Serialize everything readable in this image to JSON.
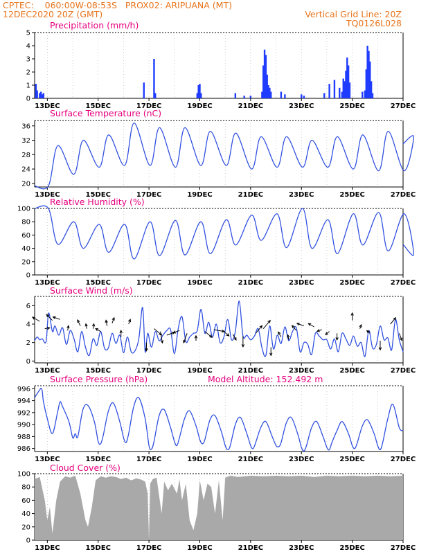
{
  "header": {
    "left_line1": "CPTEC:    060:00W-08:53S   PROX02: ARIPUANA (MT)",
    "left_line2": "12DEC2020 20Z (GMT)",
    "right_line1": "Vertical Grid Line: 20Z",
    "right_line2": "TQ0126L028"
  },
  "colors": {
    "header": "#e8741c",
    "panel_title": "#e6007e",
    "series_line": "#3050e0",
    "precip_bar": "#1f3cff",
    "cloud_fill": "#a9a9a9",
    "wind_arrow": "#000000"
  },
  "chart_data": [
    {
      "type": "bar",
      "title": "Precipitation (mm/h)",
      "ylim": [
        0,
        5
      ],
      "yticks": [
        0,
        1,
        2,
        3,
        4,
        5
      ],
      "x_start": 12.5,
      "x_end": 27,
      "xticks": [
        "13DEC",
        "15DEC",
        "17DEC",
        "19DEC",
        "21DEC",
        "23DEC",
        "25DEC",
        "27DEC"
      ],
      "x": [
        12.55,
        12.6,
        12.7,
        12.75,
        12.8,
        12.85,
        16.8,
        17.2,
        17.25,
        18.9,
        18.95,
        19.0,
        19.05,
        20.4,
        20.75,
        21.0,
        21.45,
        21.5,
        21.55,
        21.6,
        21.65,
        21.7,
        21.75,
        21.8,
        22.2,
        22.35,
        23.0,
        23.1,
        23.9,
        24.1,
        24.3,
        24.5,
        24.6,
        24.65,
        24.7,
        24.75,
        24.8,
        24.85,
        24.9,
        25.4,
        25.5,
        25.55,
        25.6,
        25.65,
        25.7,
        25.75,
        25.8
      ],
      "values": [
        1.1,
        0.6,
        0.4,
        0.5,
        0.3,
        0.4,
        1.2,
        3.0,
        0.4,
        0.4,
        1.0,
        1.1,
        0.4,
        0.4,
        0.2,
        0.2,
        0.5,
        2.5,
        3.7,
        3.3,
        1.8,
        1.0,
        0.8,
        0.5,
        0.5,
        0.3,
        0.3,
        0.2,
        0.4,
        1.1,
        1.4,
        0.8,
        0.5,
        1.5,
        1.3,
        2.1,
        3.1,
        2.5,
        1.2,
        0.5,
        0.6,
        2.2,
        4.0,
        3.6,
        2.8,
        1.3,
        0.4
      ]
    },
    {
      "type": "line",
      "title": "Surface Temperature (nC)",
      "ylim": [
        19,
        37.5
      ],
      "yticks": [
        20,
        24,
        28,
        32,
        36
      ],
      "x_start": 12.5,
      "x_end": 27,
      "xticks": [
        "13DEC",
        "15DEC",
        "17DEC",
        "19DEC",
        "21DEC",
        "23DEC",
        "25DEC",
        "27DEC"
      ],
      "period_start": 12.5,
      "minima_hours_after_start": 13,
      "maxima_hours_after_start": 22,
      "daily_min": [
        19.3,
        22.5,
        24.5,
        25.0,
        25.0,
        24.5,
        25.0,
        25.0,
        24.0,
        24.5,
        24.5,
        24.5,
        24.0,
        23.5,
        23.5
      ],
      "daily_max": [
        30.5,
        32.0,
        33.5,
        36.8,
        35.5,
        35.5,
        34.5,
        34.0,
        33.0,
        33.0,
        32.0,
        33.0,
        33.5,
        34.5,
        33.0
      ],
      "end_value": 31.0
    },
    {
      "type": "line",
      "title": "Relative Humidity (%)",
      "ylim": [
        0,
        100
      ],
      "yticks": [
        0,
        20,
        40,
        60,
        80,
        100
      ],
      "x_start": 12.5,
      "x_end": 27,
      "xticks": [
        "13DEC",
        "15DEC",
        "17DEC",
        "19DEC",
        "21DEC",
        "23DEC",
        "25DEC",
        "27DEC"
      ],
      "period_start": 12.5,
      "minima_hours_after_start": 22,
      "maxima_hours_after_start": 13,
      "daily_min": [
        46,
        40,
        34,
        24,
        29,
        30,
        32,
        45,
        52,
        41,
        40,
        32,
        45,
        36,
        31
      ],
      "daily_max": [
        100,
        80,
        76,
        76,
        80,
        82,
        80,
        83,
        90,
        92,
        100,
        83,
        92,
        94,
        92
      ],
      "start_value": 100,
      "end_value": 46
    },
    {
      "type": "line",
      "title": "Surface Wind (m/s)",
      "ylim": [
        -0.2,
        7
      ],
      "yticks": [
        0,
        2,
        4,
        6
      ],
      "x_start": 12.5,
      "x_end": 27,
      "xticks": [
        "13DEC",
        "15DEC",
        "17DEC",
        "19DEC",
        "21DEC",
        "23DEC",
        "25DEC",
        "27DEC"
      ],
      "x": [
        12.5,
        12.6,
        12.7,
        12.8,
        12.95,
        13.05,
        13.2,
        13.3,
        13.45,
        13.6,
        13.75,
        13.9,
        14.05,
        14.2,
        14.35,
        14.5,
        14.65,
        14.8,
        14.95,
        15.1,
        15.25,
        15.4,
        15.55,
        15.7,
        15.85,
        16.0,
        16.15,
        16.3,
        16.45,
        16.6,
        16.75,
        16.85,
        16.95,
        17.1,
        17.25,
        17.4,
        17.55,
        17.7,
        17.85,
        18.0,
        18.15,
        18.3,
        18.45,
        18.6,
        18.75,
        18.9,
        19.05,
        19.2,
        19.35,
        19.5,
        19.65,
        19.8,
        19.95,
        20.1,
        20.25,
        20.4,
        20.55,
        20.7,
        20.85,
        21.0,
        21.15,
        21.3,
        21.45,
        21.6,
        21.75,
        21.9,
        22.05,
        22.2,
        22.35,
        22.5,
        22.65,
        22.8,
        22.95,
        23.1,
        23.25,
        23.4,
        23.55,
        23.7,
        23.85,
        24.0,
        24.15,
        24.3,
        24.45,
        24.6,
        24.75,
        24.9,
        25.05,
        25.2,
        25.35,
        25.5,
        25.65,
        25.8,
        25.95,
        26.1,
        26.25,
        26.4,
        26.55,
        26.7,
        26.85,
        27.0
      ],
      "values": [
        2.2,
        2.6,
        2.3,
        2.4,
        2.1,
        5.2,
        3.2,
        3.8,
        2.8,
        3.6,
        1.8,
        3.3,
        2.4,
        1.0,
        3.2,
        1.5,
        0.6,
        2.4,
        1.7,
        3.2,
        1.4,
        1.4,
        3.0,
        1.9,
        2.8,
        0.9,
        2.6,
        1.0,
        1.1,
        2.4,
        5.8,
        1.0,
        3.0,
        1.5,
        3.2,
        2.2,
        2.8,
        3.3,
        3.4,
        0.8,
        3.5,
        4.8,
        2.1,
        2.6,
        3.0,
        3.3,
        5.6,
        3.0,
        4.2,
        2.6,
        4.0,
        2.0,
        2.6,
        4.5,
        2.3,
        3.2,
        6.5,
        2.7,
        2.8,
        2.3,
        2.7,
        3.5,
        1.4,
        0.6,
        3.8,
        1.3,
        2.8,
        1.9,
        3.7,
        2.2,
        3.2,
        3.6,
        1.0,
        2.0,
        1.8,
        0.7,
        3.0,
        2.7,
        2.3,
        2.3,
        1.3,
        2.4,
        1.0,
        3.0,
        2.4,
        1.7,
        2.7,
        1.6,
        2.0,
        0.5,
        3.3,
        1.4,
        1.8,
        3.8,
        2.3,
        2.5,
        1.2,
        4.5,
        2.3,
        1.0
      ],
      "arrows": [
        {
          "x": 12.7,
          "y": 4.3,
          "dir_deg": 300,
          "len": 1.0
        },
        {
          "x": 12.9,
          "y": 3.5,
          "dir_deg": 80,
          "len": 0.6
        },
        {
          "x": 13.2,
          "y": 4.4,
          "dir_deg": 315,
          "len": 1.0
        },
        {
          "x": 13.5,
          "y": 4.5,
          "dir_deg": 290,
          "len": 0.9
        },
        {
          "x": 13.8,
          "y": 3.3,
          "dir_deg": 10,
          "len": 0.6
        },
        {
          "x": 14.3,
          "y": 3.8,
          "dir_deg": 335,
          "len": 0.8
        },
        {
          "x": 14.55,
          "y": 3.5,
          "dir_deg": 350,
          "len": 0.6
        },
        {
          "x": 14.8,
          "y": 3.5,
          "dir_deg": 10,
          "len": 0.6
        },
        {
          "x": 15.1,
          "y": 3.2,
          "dir_deg": 300,
          "len": 0.7
        },
        {
          "x": 15.35,
          "y": 3.8,
          "dir_deg": 350,
          "len": 0.7
        },
        {
          "x": 15.55,
          "y": 4.1,
          "dir_deg": 20,
          "len": 0.7
        },
        {
          "x": 15.9,
          "y": 2.6,
          "dir_deg": 0,
          "len": 0.8
        },
        {
          "x": 16.2,
          "y": 4.0,
          "dir_deg": 20,
          "len": 0.6
        },
        {
          "x": 16.9,
          "y": 2.0,
          "dir_deg": 180,
          "len": 1.0
        },
        {
          "x": 17.2,
          "y": 3.5,
          "dir_deg": 130,
          "len": 1.2
        },
        {
          "x": 17.45,
          "y": 3.2,
          "dir_deg": 170,
          "len": 1.4
        },
        {
          "x": 17.7,
          "y": 2.8,
          "dir_deg": 70,
          "len": 1.0
        },
        {
          "x": 18.2,
          "y": 3.3,
          "dir_deg": 250,
          "len": 0.8
        },
        {
          "x": 18.5,
          "y": 3.0,
          "dir_deg": 200,
          "len": 1.2
        },
        {
          "x": 18.85,
          "y": 2.2,
          "dir_deg": 0,
          "len": 0.6
        },
        {
          "x": 19.2,
          "y": 3.2,
          "dir_deg": 130,
          "len": 1.1
        },
        {
          "x": 19.55,
          "y": 3.4,
          "dir_deg": 100,
          "len": 1.3
        },
        {
          "x": 19.9,
          "y": 3.3,
          "dir_deg": 130,
          "len": 1.0
        },
        {
          "x": 20.3,
          "y": 2.9,
          "dir_deg": 150,
          "len": 0.8
        },
        {
          "x": 20.7,
          "y": 2.7,
          "dir_deg": 180,
          "len": 1.3
        },
        {
          "x": 21.2,
          "y": 3.0,
          "dir_deg": 40,
          "len": 1.2
        },
        {
          "x": 21.5,
          "y": 3.5,
          "dir_deg": 40,
          "len": 1.3
        },
        {
          "x": 21.8,
          "y": 1.5,
          "dir_deg": 180,
          "len": 1.0
        },
        {
          "x": 22.2,
          "y": 2.6,
          "dir_deg": 330,
          "len": 0.7
        },
        {
          "x": 22.5,
          "y": 2.3,
          "dir_deg": 350,
          "len": 0.6
        },
        {
          "x": 22.8,
          "y": 3.3,
          "dir_deg": 320,
          "len": 0.8
        },
        {
          "x": 23.1,
          "y": 3.8,
          "dir_deg": 290,
          "len": 0.9
        },
        {
          "x": 23.5,
          "y": 3.7,
          "dir_deg": 300,
          "len": 0.8
        },
        {
          "x": 23.8,
          "y": 3.4,
          "dir_deg": 250,
          "len": 0.6
        },
        {
          "x": 24.1,
          "y": 3.2,
          "dir_deg": 230,
          "len": 0.6
        },
        {
          "x": 24.4,
          "y": 3.0,
          "dir_deg": 180,
          "len": 0.8
        },
        {
          "x": 25.0,
          "y": 4.4,
          "dir_deg": 0,
          "len": 0.9
        },
        {
          "x": 25.3,
          "y": 3.5,
          "dir_deg": 20,
          "len": 0.5
        },
        {
          "x": 25.7,
          "y": 3.0,
          "dir_deg": 310,
          "len": 0.5
        },
        {
          "x": 26.1,
          "y": 2.2,
          "dir_deg": 180,
          "len": 1.1
        },
        {
          "x": 26.5,
          "y": 4.0,
          "dir_deg": 40,
          "len": 1.0
        },
        {
          "x": 26.85,
          "y": 3.0,
          "dir_deg": 160,
          "len": 0.9
        }
      ]
    },
    {
      "type": "line",
      "title": "Surface Pressure (hPa)",
      "annotation": "Model Altitude: 152.492 m",
      "ylim": [
        985.5,
        996.5
      ],
      "yticks": [
        986,
        988,
        990,
        992,
        994,
        996
      ],
      "x_start": 12.5,
      "x_end": 27,
      "xticks": [
        "13DEC",
        "15DEC",
        "17DEC",
        "19DEC",
        "21DEC",
        "23DEC",
        "25DEC",
        "27DEC"
      ],
      "x": [
        12.5,
        12.6,
        12.7,
        12.75,
        12.8,
        12.85,
        13.0,
        13.2,
        13.4,
        13.5,
        13.6,
        13.85,
        14.0,
        14.1,
        14.2,
        14.4,
        14.6,
        14.85,
        15.0,
        15.1,
        15.2,
        15.4,
        15.6,
        15.85,
        16.0,
        16.1,
        16.2,
        16.4,
        16.6,
        16.85,
        17.0,
        17.1,
        17.2,
        17.4,
        17.6,
        17.85,
        18.0,
        18.1,
        18.2,
        18.4,
        18.6,
        18.85,
        19.0,
        19.1,
        19.2,
        19.4,
        19.6,
        19.85,
        20.0,
        20.1,
        20.2,
        20.4,
        20.6,
        20.85,
        21.0,
        21.1,
        21.2,
        21.4,
        21.6,
        21.85,
        22.0,
        22.1,
        22.2,
        22.4,
        22.6,
        22.85,
        23.0,
        23.1,
        23.2,
        23.4,
        23.6,
        23.85,
        24.0,
        24.1,
        24.2,
        24.4,
        24.6,
        24.85,
        25.0,
        25.1,
        25.2,
        25.4,
        25.6,
        25.85,
        26.0,
        26.1,
        26.2,
        26.4,
        26.6,
        26.85,
        27.0
      ],
      "values": [
        994.5,
        995.2,
        995.8,
        996.1,
        995.6,
        993.8,
        991.0,
        988.5,
        992.0,
        993.8,
        993.0,
        990.5,
        987.8,
        988.5,
        988.0,
        992.5,
        993.2,
        990.5,
        987.2,
        986.8,
        988.2,
        992.2,
        993.6,
        990.5,
        987.8,
        987.0,
        988.5,
        993.0,
        994.5,
        991.0,
        986.5,
        985.9,
        987.2,
        991.5,
        992.5,
        989.5,
        987.2,
        986.5,
        987.8,
        991.0,
        992.3,
        989.8,
        987.5,
        986.8,
        987.5,
        990.8,
        991.5,
        988.8,
        986.5,
        985.8,
        986.5,
        990.0,
        991.2,
        988.5,
        986.5,
        986.0,
        987.0,
        989.5,
        990.5,
        988.0,
        986.5,
        986.3,
        987.0,
        990.2,
        991.2,
        988.5,
        986.2,
        985.6,
        986.5,
        989.5,
        990.5,
        988.0,
        986.2,
        985.8,
        987.0,
        989.0,
        990.5,
        988.5,
        986.5,
        986.0,
        987.0,
        989.8,
        990.8,
        988.6,
        986.5,
        985.8,
        987.0,
        991.0,
        993.4,
        989.5,
        989.0
      ]
    },
    {
      "type": "area",
      "title": "Cloud Cover (%)",
      "ylim": [
        0,
        100
      ],
      "yticks": [
        0,
        20,
        40,
        60,
        80,
        100
      ],
      "x_start": 12.5,
      "x_end": 27,
      "xticks": [
        "13DEC",
        "15DEC",
        "17DEC",
        "19DEC",
        "21DEC",
        "23DEC",
        "25DEC",
        "27DEC"
      ],
      "x": [
        12.5,
        12.7,
        12.9,
        13.0,
        13.1,
        13.2,
        13.35,
        13.5,
        13.7,
        13.9,
        14.1,
        14.3,
        14.5,
        14.6,
        14.75,
        14.9,
        15.1,
        15.3,
        15.5,
        15.7,
        15.9,
        16.1,
        16.3,
        16.5,
        16.7,
        16.85,
        16.95,
        17.0,
        17.05,
        17.15,
        17.3,
        17.5,
        17.6,
        17.75,
        17.9,
        18.1,
        18.2,
        18.3,
        18.45,
        18.6,
        18.75,
        18.9,
        19.0,
        19.15,
        19.3,
        19.45,
        19.6,
        19.75,
        19.9,
        20.0,
        20.2,
        20.5,
        21.0,
        21.5,
        22.0,
        22.5,
        23.0,
        23.5,
        24.0,
        24.5,
        25.0,
        25.5,
        26.0,
        26.5,
        27.0
      ],
      "values": [
        92,
        95,
        60,
        30,
        50,
        10,
        60,
        88,
        96,
        94,
        97,
        70,
        30,
        20,
        50,
        90,
        96,
        94,
        96,
        95,
        92,
        94,
        90,
        93,
        91,
        88,
        70,
        0,
        85,
        92,
        94,
        40,
        88,
        75,
        85,
        70,
        92,
        60,
        85,
        30,
        15,
        40,
        90,
        60,
        85,
        80,
        40,
        90,
        30,
        94,
        97,
        95,
        97,
        96,
        97,
        96,
        97,
        95,
        97,
        96,
        97,
        96,
        97,
        96,
        97
      ]
    }
  ]
}
